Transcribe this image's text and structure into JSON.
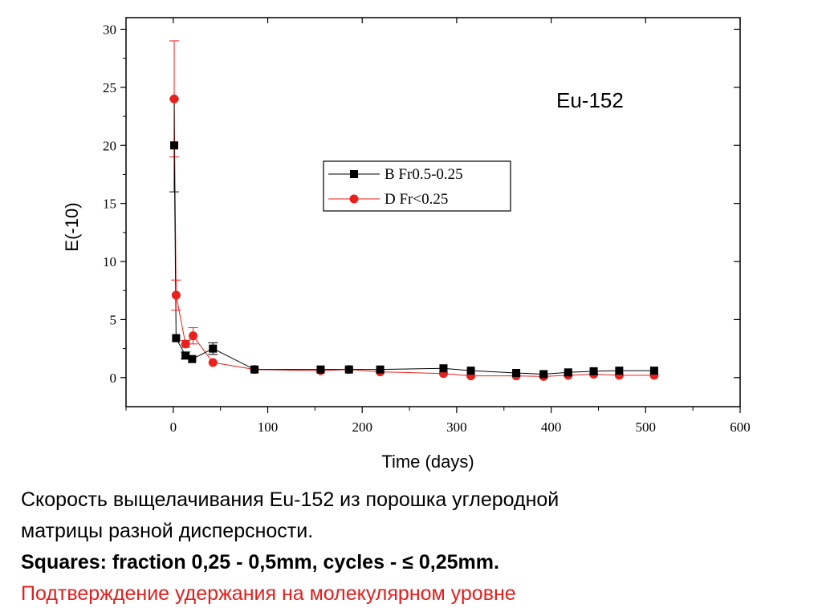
{
  "chart_data": {
    "type": "scatter",
    "annotation": "Eu-152",
    "xlabel": "Time (days)",
    "ylabel": "E(-10)",
    "xlim": [
      -50,
      600
    ],
    "ylim": [
      -2.5,
      31
    ],
    "xticks": [
      0,
      100,
      200,
      300,
      400,
      500,
      600
    ],
    "yticks": [
      0,
      5,
      10,
      15,
      20,
      25,
      30
    ],
    "legend_position": "center",
    "grid": false,
    "series": [
      {
        "name": "B  Fr0.5-0.25",
        "marker": "square",
        "color": "#000000",
        "x": [
          1,
          3,
          13,
          20,
          42,
          86,
          156,
          186,
          219,
          286,
          315,
          363,
          392,
          418,
          445,
          472,
          509
        ],
        "y": [
          20.0,
          3.4,
          1.9,
          1.6,
          2.5,
          0.7,
          0.7,
          0.7,
          0.7,
          0.8,
          0.6,
          0.4,
          0.3,
          0.45,
          0.55,
          0.6,
          0.6
        ],
        "yerr": [
          4.0,
          0,
          0.3,
          0,
          0.5,
          0,
          0,
          0,
          0,
          0,
          0,
          0,
          0,
          0,
          0,
          0,
          0
        ]
      },
      {
        "name": "D  Fr<0.25",
        "marker": "circle",
        "color": "#e8211e",
        "x": [
          1,
          3,
          13,
          21,
          42,
          86,
          156,
          186,
          219,
          286,
          315,
          363,
          392,
          418,
          445,
          472,
          509
        ],
        "y": [
          24.0,
          7.1,
          2.9,
          3.6,
          1.3,
          0.7,
          0.6,
          0.7,
          0.5,
          0.35,
          0.15,
          0.15,
          0.1,
          0.2,
          0.3,
          0.2,
          0.2
        ],
        "yerr": [
          5.0,
          1.3,
          0.3,
          0.7,
          0,
          0,
          0,
          0,
          0,
          0,
          0,
          0,
          0,
          0,
          0,
          0,
          0
        ]
      }
    ]
  },
  "caption": {
    "line1": "Скорость выщелачивания Eu-152  из порошка углеродной",
    "line2": "матрицы разной дисперсности.",
    "line3": "Squares: fraction 0,25 - 0,5mm, cycles - ≤ 0,25mm.",
    "line4": "Подтверждение удержания на молекулярном уровне"
  }
}
